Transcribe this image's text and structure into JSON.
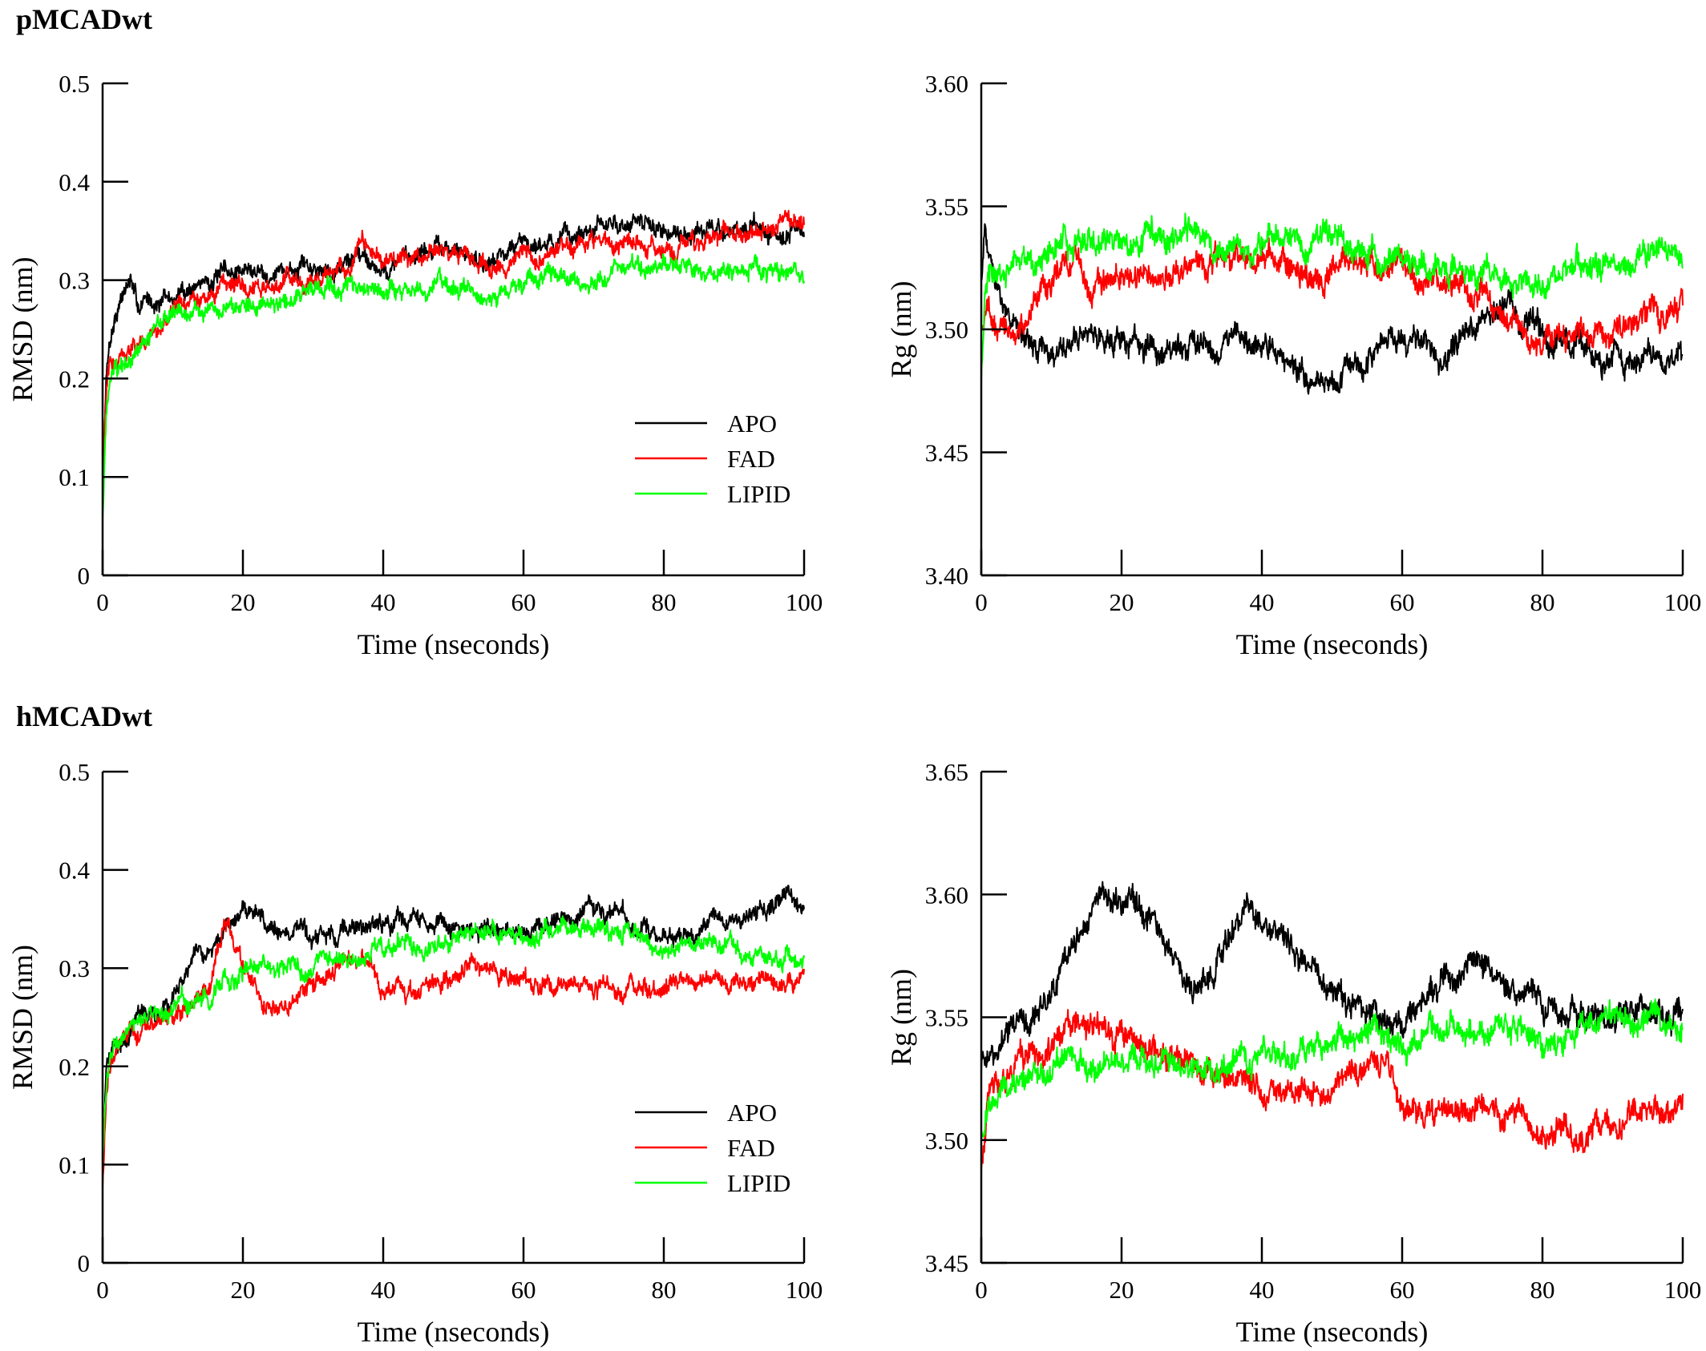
{
  "figure": {
    "section_titles": [
      "pMCADwt",
      "hMCADwt"
    ]
  },
  "chart_data": [
    {
      "type": "line",
      "section": "pMCADwt",
      "xlabel": "Time (nseconds)",
      "ylabel": "RMSD (nm)",
      "xlim": [
        0,
        100
      ],
      "ylim": [
        0,
        0.5
      ],
      "xticks": [
        "0",
        "20",
        "40",
        "60",
        "80",
        "100"
      ],
      "yticks": [
        "0",
        "0.1",
        "0.2",
        "0.3",
        "0.4",
        "0.5"
      ],
      "grid": false,
      "legend": "lower-right",
      "noise": 0.012,
      "series": [
        {
          "name": "APO",
          "color": "#000000",
          "x": [
            0,
            0.5,
            1,
            2,
            3,
            4,
            5,
            6,
            8,
            10,
            12,
            15,
            20,
            25,
            30,
            35,
            37,
            40,
            45,
            50,
            55,
            60,
            65,
            70,
            75,
            80,
            85,
            90,
            95,
            100
          ],
          "y": [
            0.08,
            0.2,
            0.24,
            0.27,
            0.29,
            0.3,
            0.27,
            0.28,
            0.28,
            0.28,
            0.29,
            0.3,
            0.31,
            0.31,
            0.31,
            0.32,
            0.33,
            0.31,
            0.33,
            0.33,
            0.32,
            0.34,
            0.34,
            0.35,
            0.36,
            0.35,
            0.35,
            0.35,
            0.35,
            0.35
          ]
        },
        {
          "name": "FAD",
          "color": "#ff0000",
          "x": [
            0,
            0.5,
            1,
            2,
            4,
            6,
            8,
            10,
            15,
            20,
            25,
            30,
            35,
            37,
            40,
            45,
            50,
            55,
            60,
            65,
            70,
            75,
            80,
            85,
            90,
            95,
            100
          ],
          "y": [
            0.1,
            0.18,
            0.21,
            0.22,
            0.23,
            0.24,
            0.25,
            0.27,
            0.28,
            0.29,
            0.3,
            0.3,
            0.31,
            0.34,
            0.32,
            0.33,
            0.33,
            0.31,
            0.32,
            0.33,
            0.34,
            0.34,
            0.33,
            0.34,
            0.35,
            0.35,
            0.36
          ]
        },
        {
          "name": "LIPID",
          "color": "#00ff00",
          "x": [
            0,
            0.5,
            1,
            2,
            4,
            6,
            8,
            10,
            15,
            20,
            25,
            30,
            35,
            40,
            45,
            50,
            55,
            60,
            65,
            70,
            75,
            80,
            85,
            90,
            95,
            100
          ],
          "y": [
            0.06,
            0.17,
            0.2,
            0.21,
            0.22,
            0.24,
            0.25,
            0.27,
            0.27,
            0.27,
            0.28,
            0.29,
            0.29,
            0.29,
            0.29,
            0.3,
            0.28,
            0.3,
            0.3,
            0.3,
            0.31,
            0.31,
            0.31,
            0.31,
            0.31,
            0.31
          ]
        }
      ]
    },
    {
      "type": "line",
      "section": "pMCADwt",
      "xlabel": "Time (nseconds)",
      "ylabel": "Rg (nm)",
      "xlim": [
        0,
        100
      ],
      "ylim": [
        3.4,
        3.6
      ],
      "xticks": [
        "0",
        "20",
        "40",
        "60",
        "80",
        "100"
      ],
      "yticks": [
        "3.40",
        "3.45",
        "3.50",
        "3.55",
        "3.60"
      ],
      "grid": false,
      "legend": "none",
      "noise": 0.007,
      "series": [
        {
          "name": "APO",
          "color": "#000000",
          "x": [
            0,
            0.5,
            1,
            2,
            3,
            5,
            8,
            10,
            15,
            20,
            25,
            30,
            35,
            40,
            45,
            50,
            55,
            60,
            65,
            70,
            75,
            80,
            85,
            90,
            95,
            100
          ],
          "y": [
            3.52,
            3.54,
            3.535,
            3.52,
            3.51,
            3.5,
            3.495,
            3.49,
            3.5,
            3.495,
            3.49,
            3.495,
            3.495,
            3.49,
            3.485,
            3.48,
            3.49,
            3.495,
            3.485,
            3.5,
            3.51,
            3.5,
            3.495,
            3.49,
            3.49,
            3.49
          ]
        },
        {
          "name": "FAD",
          "color": "#ff0000",
          "x": [
            0,
            0.5,
            1,
            3,
            5,
            8,
            10,
            12,
            15,
            20,
            25,
            30,
            35,
            40,
            45,
            50,
            55,
            60,
            65,
            70,
            75,
            80,
            85,
            90,
            95,
            100
          ],
          "y": [
            3.5,
            3.51,
            3.505,
            3.5,
            3.5,
            3.51,
            3.52,
            3.53,
            3.52,
            3.52,
            3.52,
            3.525,
            3.53,
            3.53,
            3.525,
            3.525,
            3.53,
            3.525,
            3.52,
            3.515,
            3.505,
            3.495,
            3.5,
            3.5,
            3.505,
            3.51
          ]
        },
        {
          "name": "LIPID",
          "color": "#00ff00",
          "x": [
            0,
            0.5,
            1,
            3,
            5,
            8,
            10,
            15,
            20,
            25,
            30,
            35,
            40,
            45,
            50,
            55,
            60,
            65,
            70,
            75,
            80,
            85,
            90,
            95,
            100
          ],
          "y": [
            3.48,
            3.51,
            3.52,
            3.52,
            3.525,
            3.53,
            3.535,
            3.535,
            3.535,
            3.54,
            3.54,
            3.535,
            3.535,
            3.535,
            3.535,
            3.53,
            3.53,
            3.525,
            3.525,
            3.52,
            3.52,
            3.525,
            3.525,
            3.53,
            3.53
          ]
        }
      ]
    },
    {
      "type": "line",
      "section": "hMCADwt",
      "xlabel": "Time (nseconds)",
      "ylabel": "RMSD (nm)",
      "xlim": [
        0,
        100
      ],
      "ylim": [
        0,
        0.5
      ],
      "xticks": [
        "0",
        "20",
        "40",
        "60",
        "80",
        "100"
      ],
      "yticks": [
        "0",
        "0.1",
        "0.2",
        "0.3",
        "0.4",
        "0.5"
      ],
      "grid": false,
      "legend": "lower-right",
      "noise": 0.012,
      "series": [
        {
          "name": "APO",
          "color": "#000000",
          "x": [
            0,
            0.5,
            1,
            2,
            4,
            6,
            8,
            10,
            12,
            15,
            18,
            20,
            22,
            25,
            30,
            35,
            40,
            45,
            50,
            55,
            60,
            65,
            70,
            75,
            80,
            85,
            90,
            95,
            98,
            100
          ],
          "y": [
            0.1,
            0.19,
            0.21,
            0.22,
            0.24,
            0.25,
            0.26,
            0.27,
            0.29,
            0.32,
            0.34,
            0.36,
            0.35,
            0.34,
            0.33,
            0.34,
            0.34,
            0.35,
            0.34,
            0.34,
            0.33,
            0.35,
            0.36,
            0.35,
            0.33,
            0.34,
            0.35,
            0.36,
            0.38,
            0.36
          ]
        },
        {
          "name": "FAD",
          "color": "#ff0000",
          "x": [
            0,
            0.5,
            1,
            2,
            4,
            6,
            8,
            10,
            12,
            15,
            17,
            18,
            20,
            22,
            25,
            30,
            35,
            37,
            40,
            45,
            50,
            55,
            60,
            65,
            70,
            75,
            80,
            85,
            90,
            95,
            100
          ],
          "y": [
            0.08,
            0.17,
            0.2,
            0.22,
            0.23,
            0.24,
            0.25,
            0.25,
            0.26,
            0.28,
            0.33,
            0.34,
            0.3,
            0.27,
            0.26,
            0.28,
            0.31,
            0.31,
            0.28,
            0.28,
            0.29,
            0.3,
            0.28,
            0.28,
            0.28,
            0.28,
            0.28,
            0.29,
            0.29,
            0.29,
            0.29
          ]
        },
        {
          "name": "LIPID",
          "color": "#00ff00",
          "x": [
            0,
            0.5,
            1,
            2,
            4,
            6,
            8,
            10,
            15,
            18,
            20,
            25,
            30,
            35,
            40,
            45,
            50,
            55,
            60,
            65,
            70,
            75,
            80,
            85,
            90,
            95,
            100
          ],
          "y": [
            0.1,
            0.18,
            0.2,
            0.22,
            0.24,
            0.25,
            0.25,
            0.26,
            0.27,
            0.29,
            0.3,
            0.3,
            0.3,
            0.31,
            0.32,
            0.32,
            0.33,
            0.34,
            0.33,
            0.34,
            0.34,
            0.34,
            0.31,
            0.33,
            0.32,
            0.31,
            0.31
          ]
        }
      ]
    },
    {
      "type": "line",
      "section": "hMCADwt",
      "xlabel": "Time (nseconds)",
      "ylabel": "Rg (nm)",
      "xlim": [
        0,
        100
      ],
      "ylim": [
        3.45,
        3.65
      ],
      "xticks": [
        "0",
        "20",
        "40",
        "60",
        "80",
        "100"
      ],
      "yticks": [
        "3.45",
        "3.50",
        "3.55",
        "3.60",
        "3.65"
      ],
      "grid": false,
      "legend": "none",
      "noise": 0.007,
      "series": [
        {
          "name": "APO",
          "color": "#000000",
          "x": [
            0,
            1,
            3,
            5,
            8,
            10,
            12,
            15,
            18,
            20,
            22,
            25,
            28,
            30,
            33,
            35,
            38,
            40,
            42,
            45,
            50,
            55,
            60,
            65,
            70,
            75,
            80,
            85,
            90,
            95,
            100
          ],
          "y": [
            3.53,
            3.535,
            3.54,
            3.545,
            3.55,
            3.56,
            3.575,
            3.59,
            3.6,
            3.6,
            3.595,
            3.585,
            3.575,
            3.56,
            3.57,
            3.58,
            3.595,
            3.59,
            3.585,
            3.575,
            3.56,
            3.55,
            3.55,
            3.56,
            3.57,
            3.56,
            3.555,
            3.55,
            3.55,
            3.555,
            3.55
          ]
        },
        {
          "name": "FAD",
          "color": "#ff0000",
          "x": [
            0,
            1,
            3,
            5,
            8,
            10,
            12,
            15,
            18,
            20,
            22,
            25,
            30,
            35,
            40,
            45,
            50,
            55,
            58,
            60,
            65,
            70,
            75,
            80,
            85,
            90,
            95,
            100
          ],
          "y": [
            3.49,
            3.52,
            3.525,
            3.53,
            3.535,
            3.54,
            3.545,
            3.55,
            3.545,
            3.545,
            3.54,
            3.535,
            3.53,
            3.525,
            3.52,
            3.52,
            3.52,
            3.53,
            3.535,
            3.51,
            3.51,
            3.515,
            3.51,
            3.505,
            3.5,
            3.51,
            3.51,
            3.515
          ]
        },
        {
          "name": "LIPID",
          "color": "#00ff00",
          "x": [
            0,
            1,
            3,
            5,
            8,
            10,
            15,
            20,
            25,
            30,
            35,
            40,
            45,
            50,
            55,
            60,
            65,
            70,
            75,
            80,
            85,
            90,
            95,
            100
          ],
          "y": [
            3.5,
            3.515,
            3.52,
            3.525,
            3.525,
            3.53,
            3.53,
            3.53,
            3.53,
            3.53,
            3.53,
            3.535,
            3.535,
            3.54,
            3.545,
            3.54,
            3.545,
            3.545,
            3.545,
            3.54,
            3.545,
            3.55,
            3.55,
            3.545
          ]
        }
      ]
    }
  ]
}
